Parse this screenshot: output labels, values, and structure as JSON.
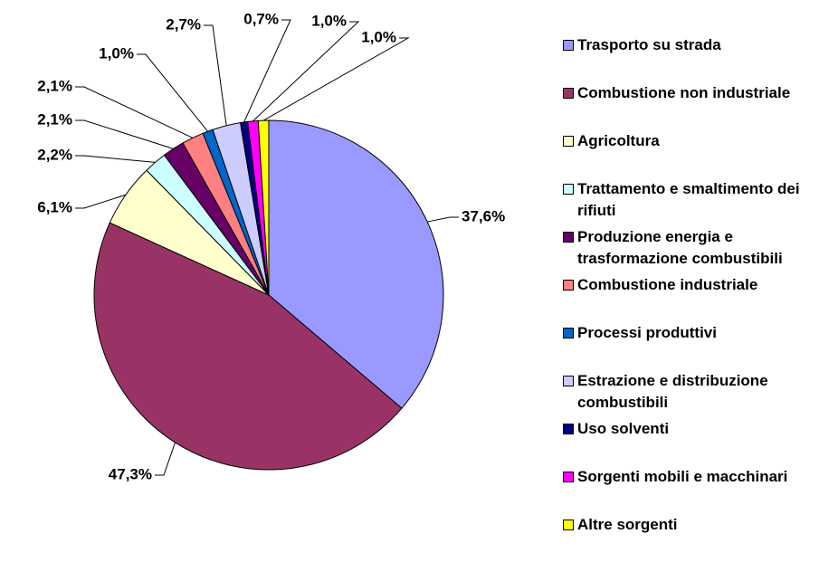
{
  "chart_data": {
    "type": "pie",
    "categories": [
      "Trasporto su strada",
      "Combustione non industriale",
      "Agricoltura",
      "Trattamento e smaltimento dei rifiuti",
      "Produzione energia e trasformazione combustibili",
      "Combustione industriale",
      "Processi produttivi",
      "Estrazione e distribuzione combustibili",
      "Uso solventi",
      "Sorgenti mobili e macchinari",
      "Altre sorgenti"
    ],
    "values": [
      37.6,
      47.3,
      6.1,
      2.2,
      2.1,
      2.1,
      1.0,
      2.7,
      0.7,
      1.0,
      1.0
    ],
    "value_labels": [
      "37,6%",
      "47,3%",
      "6,1%",
      "2,2%",
      "2,1%",
      "2,1%",
      "1,0%",
      "2,7%",
      "0,7%",
      "1,0%",
      "1,0%"
    ],
    "colors": [
      "#9999ff",
      "#993366",
      "#ffffcc",
      "#ccffff",
      "#660066",
      "#ff8080",
      "#0066cc",
      "#ccccff",
      "#000080",
      "#ff00ff",
      "#ffff00"
    ],
    "legend": "right"
  }
}
